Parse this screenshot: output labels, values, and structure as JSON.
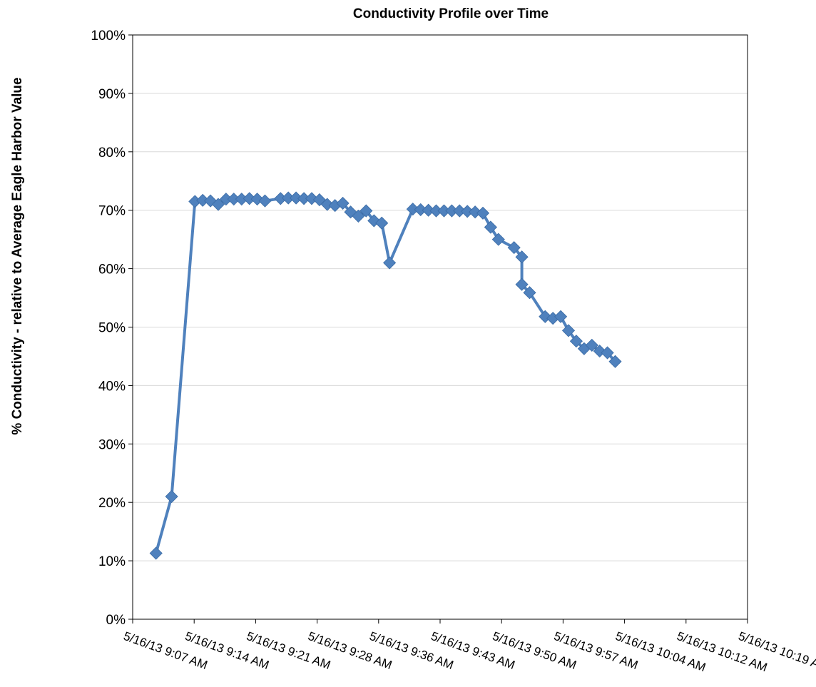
{
  "chart_data": {
    "type": "line",
    "title": "Conductivity Profile over Time",
    "xlabel": "",
    "ylabel": "% Conductivity - relative to Average Eagle Harbor Value",
    "ylim": [
      0,
      100
    ],
    "y_ticks": [
      "0%",
      "10%",
      "20%",
      "30%",
      "40%",
      "50%",
      "60%",
      "70%",
      "80%",
      "90%",
      "100%"
    ],
    "xlim": [
      "2013-05-16 09:07",
      "2013-05-16 10:26"
    ],
    "x_ticks": [
      "5/16/13 9:07 AM",
      "5/16/13 9:14 AM",
      "5/16/13 9:21 AM",
      "5/16/13 9:28 AM",
      "5/16/13 9:36 AM",
      "5/16/13 9:43 AM",
      "5/16/13 9:50 AM",
      "5/16/13 9:57 AM",
      "5/16/13 10:04 AM",
      "5/16/13 10:12 AM",
      "5/16/13 10:19 AM"
    ],
    "grid": true,
    "legend": "none",
    "colors": {
      "series": "#4f81bd",
      "grid": "#d9d9d9",
      "axis": "#000000"
    },
    "series": [
      {
        "x": [
          "2013-05-16 09:10",
          "2013-05-16 09:12",
          "2013-05-16 09:15",
          "2013-05-16 09:16",
          "2013-05-16 09:17",
          "2013-05-16 09:18",
          "2013-05-16 09:19",
          "2013-05-16 09:20",
          "2013-05-16 09:21",
          "2013-05-16 09:22",
          "2013-05-16 09:23",
          "2013-05-16 09:24",
          "2013-05-16 09:26",
          "2013-05-16 09:27",
          "2013-05-16 09:28",
          "2013-05-16 09:29",
          "2013-05-16 09:30",
          "2013-05-16 09:31",
          "2013-05-16 09:32",
          "2013-05-16 09:33",
          "2013-05-16 09:34",
          "2013-05-16 09:35",
          "2013-05-16 09:36",
          "2013-05-16 09:37",
          "2013-05-16 09:38",
          "2013-05-16 09:39",
          "2013-05-16 09:40",
          "2013-05-16 09:43",
          "2013-05-16 09:44",
          "2013-05-16 09:45",
          "2013-05-16 09:46",
          "2013-05-16 09:47",
          "2013-05-16 09:48",
          "2013-05-16 09:49",
          "2013-05-16 09:50",
          "2013-05-16 09:51",
          "2013-05-16 09:52",
          "2013-05-16 09:53",
          "2013-05-16 09:54",
          "2013-05-16 09:56",
          "2013-05-16 09:57",
          "2013-05-16 09:57",
          "2013-05-16 09:58",
          "2013-05-16 10:00",
          "2013-05-16 10:01",
          "2013-05-16 10:02",
          "2013-05-16 10:03",
          "2013-05-16 10:04",
          "2013-05-16 10:05",
          "2013-05-16 10:06",
          "2013-05-16 10:07",
          "2013-05-16 10:08",
          "2013-05-16 10:09"
        ],
        "values": [
          11.3,
          21.0,
          71.5,
          71.7,
          71.6,
          71.0,
          71.9,
          71.9,
          71.9,
          72.0,
          71.9,
          71.6,
          72.0,
          72.1,
          72.1,
          72.0,
          72.0,
          71.8,
          71.0,
          70.8,
          71.2,
          69.7,
          69.0,
          69.9,
          68.2,
          67.8,
          61.0,
          70.2,
          70.1,
          70.0,
          69.9,
          69.9,
          69.9,
          69.9,
          69.8,
          69.7,
          69.5,
          67.1,
          65.0,
          63.6,
          62.0,
          57.3,
          55.9,
          51.8,
          51.5,
          51.8,
          49.4,
          47.6,
          46.3,
          46.9,
          45.9,
          45.6,
          44.1
        ]
      }
    ]
  }
}
